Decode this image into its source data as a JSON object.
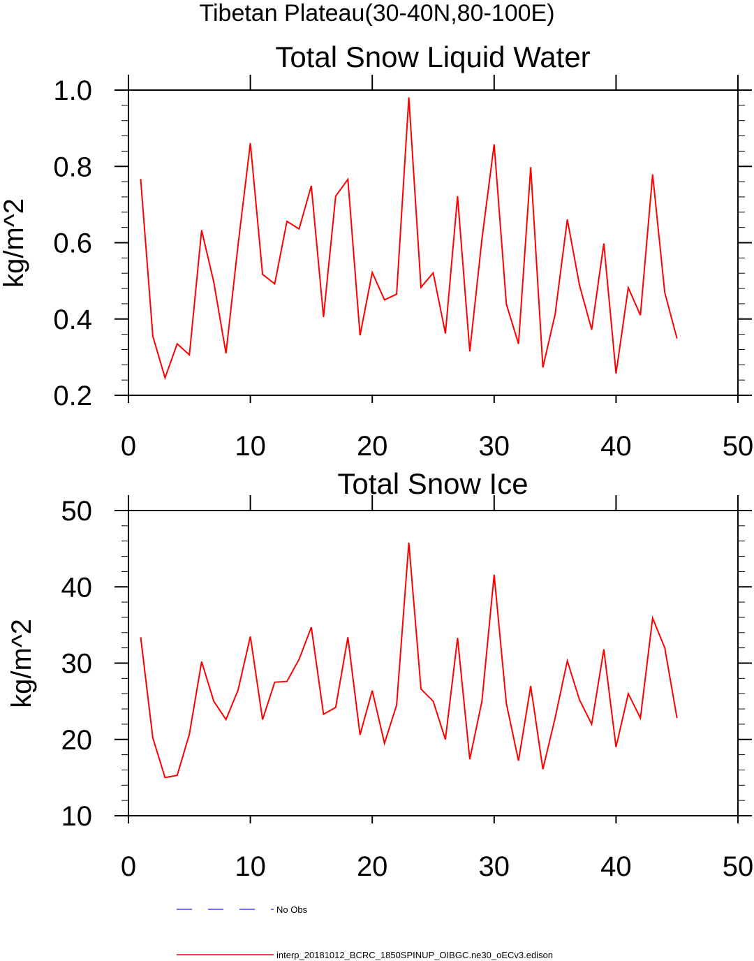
{
  "suptitle": "Tibetan Plateau(30-40N,80-100E)",
  "chart_data": [
    {
      "type": "line",
      "title": "Total Snow Liquid Water",
      "xlabel": "",
      "ylabel": "kg/m^2",
      "xlim": [
        0,
        50
      ],
      "ylim": [
        0.2,
        1.0
      ],
      "xticks": [
        0,
        10,
        20,
        30,
        40,
        50
      ],
      "xtick_labels": [
        "0",
        "10",
        "20",
        "30",
        "40",
        "50"
      ],
      "yticks": [
        0.2,
        0.4,
        0.6,
        0.8,
        1.0
      ],
      "ytick_labels": [
        "0.2",
        "0.4",
        "0.6",
        "0.8",
        "1.0"
      ],
      "grid": false,
      "series": [
        {
          "color": "#ff0000",
          "x": [
            1,
            2,
            3,
            4,
            5,
            6,
            7,
            8,
            9,
            10,
            11,
            12,
            13,
            14,
            15,
            16,
            17,
            18,
            19,
            20,
            21,
            22,
            23,
            24,
            25,
            26,
            27,
            28,
            29,
            30,
            31,
            32,
            33,
            34,
            35,
            36,
            37,
            38,
            39,
            40,
            41,
            42,
            43,
            44,
            45
          ],
          "values": [
            0.767,
            0.355,
            0.246,
            0.335,
            0.306,
            0.633,
            0.497,
            0.31,
            0.596,
            0.861,
            0.517,
            0.492,
            0.656,
            0.636,
            0.749,
            0.405,
            0.722,
            0.766,
            0.357,
            0.522,
            0.45,
            0.465,
            0.981,
            0.483,
            0.521,
            0.362,
            0.722,
            0.315,
            0.609,
            0.858,
            0.439,
            0.335,
            0.798,
            0.273,
            0.412,
            0.661,
            0.489,
            0.372,
            0.598,
            0.257,
            0.482,
            0.41,
            0.779,
            0.469,
            0.349
          ]
        }
      ]
    },
    {
      "type": "line",
      "title": "Total Snow Ice",
      "xlabel": "",
      "ylabel": "kg/m^2",
      "xlim": [
        0,
        50
      ],
      "ylim": [
        10,
        50
      ],
      "xticks": [
        0,
        10,
        20,
        30,
        40,
        50
      ],
      "xtick_labels": [
        "0",
        "10",
        "20",
        "30",
        "40",
        "50"
      ],
      "yticks": [
        10,
        20,
        30,
        40,
        50
      ],
      "ytick_labels": [
        "10",
        "20",
        "30",
        "40",
        "50"
      ],
      "grid": false,
      "series": [
        {
          "color": "#ff0000",
          "x": [
            1,
            2,
            3,
            4,
            5,
            6,
            7,
            8,
            9,
            10,
            11,
            12,
            13,
            14,
            15,
            16,
            17,
            18,
            19,
            20,
            21,
            22,
            23,
            24,
            25,
            26,
            27,
            28,
            29,
            30,
            31,
            32,
            33,
            34,
            35,
            36,
            37,
            38,
            39,
            40,
            41,
            42,
            43,
            44,
            45
          ],
          "values": [
            33.4,
            20.2,
            15.0,
            15.3,
            20.7,
            30.2,
            25.0,
            22.6,
            26.5,
            33.5,
            22.6,
            27.5,
            27.6,
            30.5,
            34.7,
            23.3,
            24.2,
            33.4,
            20.6,
            26.4,
            19.5,
            24.5,
            45.8,
            26.6,
            25.0,
            20.0,
            33.3,
            17.4,
            25.0,
            41.6,
            24.7,
            17.2,
            27.0,
            16.1,
            22.8,
            30.3,
            25.2,
            22.0,
            31.8,
            19.0,
            26.0,
            22.8,
            35.9,
            32.0,
            22.8
          ]
        }
      ]
    }
  ],
  "legend": [
    {
      "label": "No Obs",
      "color": "#4444ff",
      "style": "dashed"
    },
    {
      "label": "interp_20181012_BCRC_1850SPINUP_OIBGC.ne30_oECv3.edison",
      "color": "#ff0000",
      "style": "solid"
    }
  ]
}
